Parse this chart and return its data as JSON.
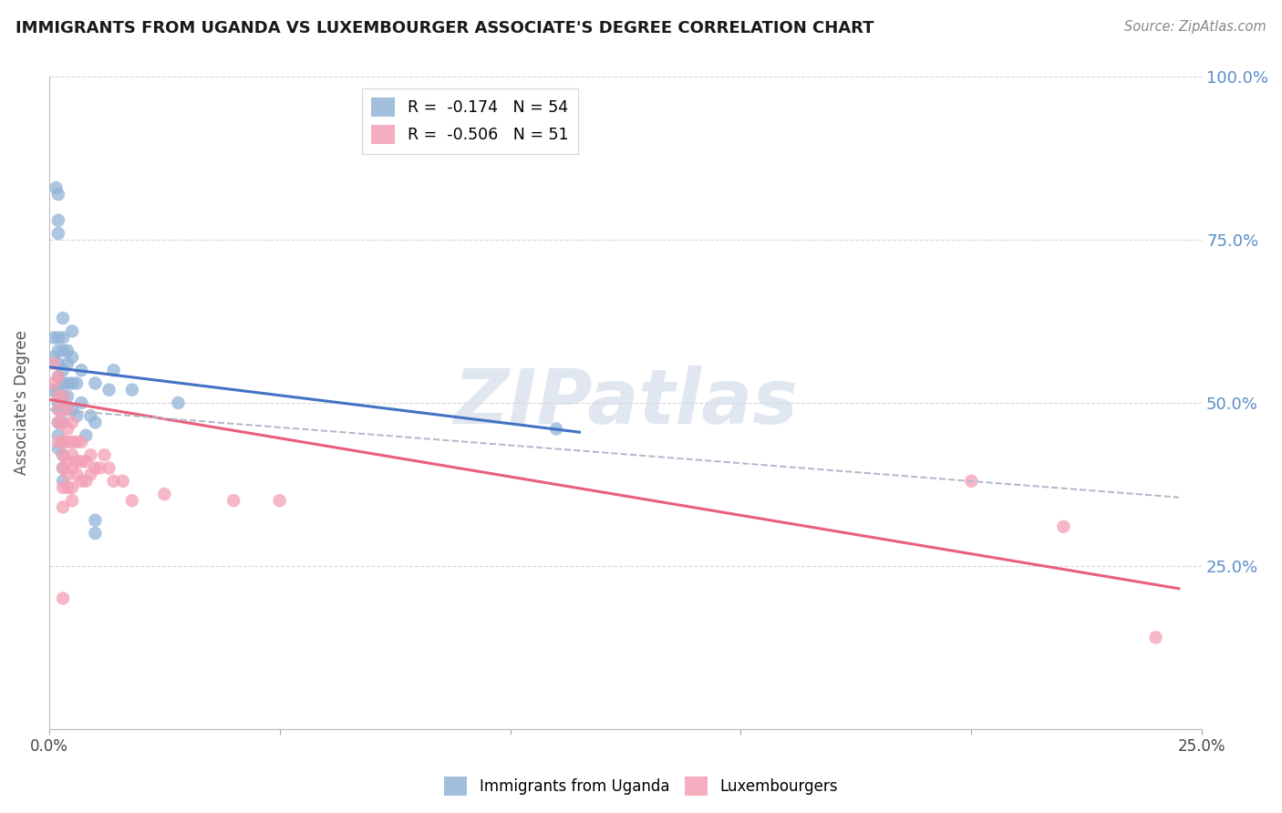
{
  "title": "IMMIGRANTS FROM UGANDA VS LUXEMBOURGER ASSOCIATE'S DEGREE CORRELATION CHART",
  "source_text": "Source: ZipAtlas.com",
  "ylabel": "Associate's Degree",
  "x_min": 0.0,
  "x_max": 0.25,
  "y_min": 0.0,
  "y_max": 1.0,
  "blue_color": "#92b4d7",
  "pink_color": "#f4a0b5",
  "blue_line_color": "#4472c4",
  "pink_line_color": "#e8607a",
  "dashed_line_color": "#b0b8c8",
  "grid_color": "#d8d8d8",
  "background_color": "#ffffff",
  "right_axis_color": "#5b8dc8",
  "watermark_color": "#ccd8e8",
  "watermark_text": "ZIPatlas",
  "legend_label_blue": "R =  -0.174   N = 54",
  "legend_label_pink": "R =  -0.506   N = 51",
  "legend_label_blue_bottom": "Immigrants from Uganda",
  "legend_label_pink_bottom": "Luxembourgers",
  "blue_points": [
    [
      0.0005,
      0.52
    ],
    [
      0.001,
      0.6
    ],
    [
      0.001,
      0.57
    ],
    [
      0.0015,
      0.83
    ],
    [
      0.002,
      0.82
    ],
    [
      0.002,
      0.78
    ],
    [
      0.002,
      0.76
    ],
    [
      0.002,
      0.6
    ],
    [
      0.002,
      0.58
    ],
    [
      0.002,
      0.56
    ],
    [
      0.002,
      0.54
    ],
    [
      0.002,
      0.52
    ],
    [
      0.002,
      0.51
    ],
    [
      0.002,
      0.5
    ],
    [
      0.002,
      0.49
    ],
    [
      0.002,
      0.47
    ],
    [
      0.002,
      0.45
    ],
    [
      0.002,
      0.43
    ],
    [
      0.003,
      0.63
    ],
    [
      0.003,
      0.6
    ],
    [
      0.003,
      0.58
    ],
    [
      0.003,
      0.55
    ],
    [
      0.003,
      0.53
    ],
    [
      0.003,
      0.51
    ],
    [
      0.003,
      0.49
    ],
    [
      0.003,
      0.47
    ],
    [
      0.003,
      0.44
    ],
    [
      0.003,
      0.42
    ],
    [
      0.003,
      0.4
    ],
    [
      0.003,
      0.38
    ],
    [
      0.004,
      0.58
    ],
    [
      0.004,
      0.56
    ],
    [
      0.004,
      0.53
    ],
    [
      0.004,
      0.51
    ],
    [
      0.004,
      0.49
    ],
    [
      0.005,
      0.61
    ],
    [
      0.005,
      0.57
    ],
    [
      0.005,
      0.53
    ],
    [
      0.005,
      0.49
    ],
    [
      0.006,
      0.53
    ],
    [
      0.006,
      0.48
    ],
    [
      0.007,
      0.55
    ],
    [
      0.007,
      0.5
    ],
    [
      0.008,
      0.45
    ],
    [
      0.009,
      0.48
    ],
    [
      0.01,
      0.53
    ],
    [
      0.01,
      0.47
    ],
    [
      0.01,
      0.32
    ],
    [
      0.01,
      0.3
    ],
    [
      0.013,
      0.52
    ],
    [
      0.014,
      0.55
    ],
    [
      0.018,
      0.52
    ],
    [
      0.028,
      0.5
    ],
    [
      0.11,
      0.46
    ]
  ],
  "pink_points": [
    [
      0.001,
      0.56
    ],
    [
      0.001,
      0.53
    ],
    [
      0.002,
      0.54
    ],
    [
      0.002,
      0.51
    ],
    [
      0.002,
      0.49
    ],
    [
      0.002,
      0.47
    ],
    [
      0.002,
      0.44
    ],
    [
      0.003,
      0.51
    ],
    [
      0.003,
      0.49
    ],
    [
      0.003,
      0.47
    ],
    [
      0.003,
      0.44
    ],
    [
      0.003,
      0.42
    ],
    [
      0.003,
      0.4
    ],
    [
      0.003,
      0.37
    ],
    [
      0.003,
      0.34
    ],
    [
      0.003,
      0.2
    ],
    [
      0.004,
      0.49
    ],
    [
      0.004,
      0.46
    ],
    [
      0.004,
      0.44
    ],
    [
      0.004,
      0.41
    ],
    [
      0.004,
      0.39
    ],
    [
      0.004,
      0.37
    ],
    [
      0.005,
      0.47
    ],
    [
      0.005,
      0.44
    ],
    [
      0.005,
      0.42
    ],
    [
      0.005,
      0.4
    ],
    [
      0.005,
      0.37
    ],
    [
      0.005,
      0.35
    ],
    [
      0.006,
      0.44
    ],
    [
      0.006,
      0.41
    ],
    [
      0.006,
      0.39
    ],
    [
      0.007,
      0.44
    ],
    [
      0.007,
      0.41
    ],
    [
      0.007,
      0.38
    ],
    [
      0.008,
      0.41
    ],
    [
      0.008,
      0.38
    ],
    [
      0.009,
      0.42
    ],
    [
      0.009,
      0.39
    ],
    [
      0.01,
      0.4
    ],
    [
      0.011,
      0.4
    ],
    [
      0.012,
      0.42
    ],
    [
      0.013,
      0.4
    ],
    [
      0.014,
      0.38
    ],
    [
      0.016,
      0.38
    ],
    [
      0.018,
      0.35
    ],
    [
      0.025,
      0.36
    ],
    [
      0.04,
      0.35
    ],
    [
      0.05,
      0.35
    ],
    [
      0.2,
      0.38
    ],
    [
      0.22,
      0.31
    ],
    [
      0.24,
      0.14
    ]
  ],
  "blue_line": {
    "x0": 0.0,
    "y0": 0.555,
    "x1": 0.115,
    "y1": 0.455
  },
  "pink_line": {
    "x0": 0.0,
    "y0": 0.505,
    "x1": 0.245,
    "y1": 0.215
  },
  "dashed_line": {
    "x0": 0.0,
    "y0": 0.49,
    "x1": 0.245,
    "y1": 0.355
  }
}
